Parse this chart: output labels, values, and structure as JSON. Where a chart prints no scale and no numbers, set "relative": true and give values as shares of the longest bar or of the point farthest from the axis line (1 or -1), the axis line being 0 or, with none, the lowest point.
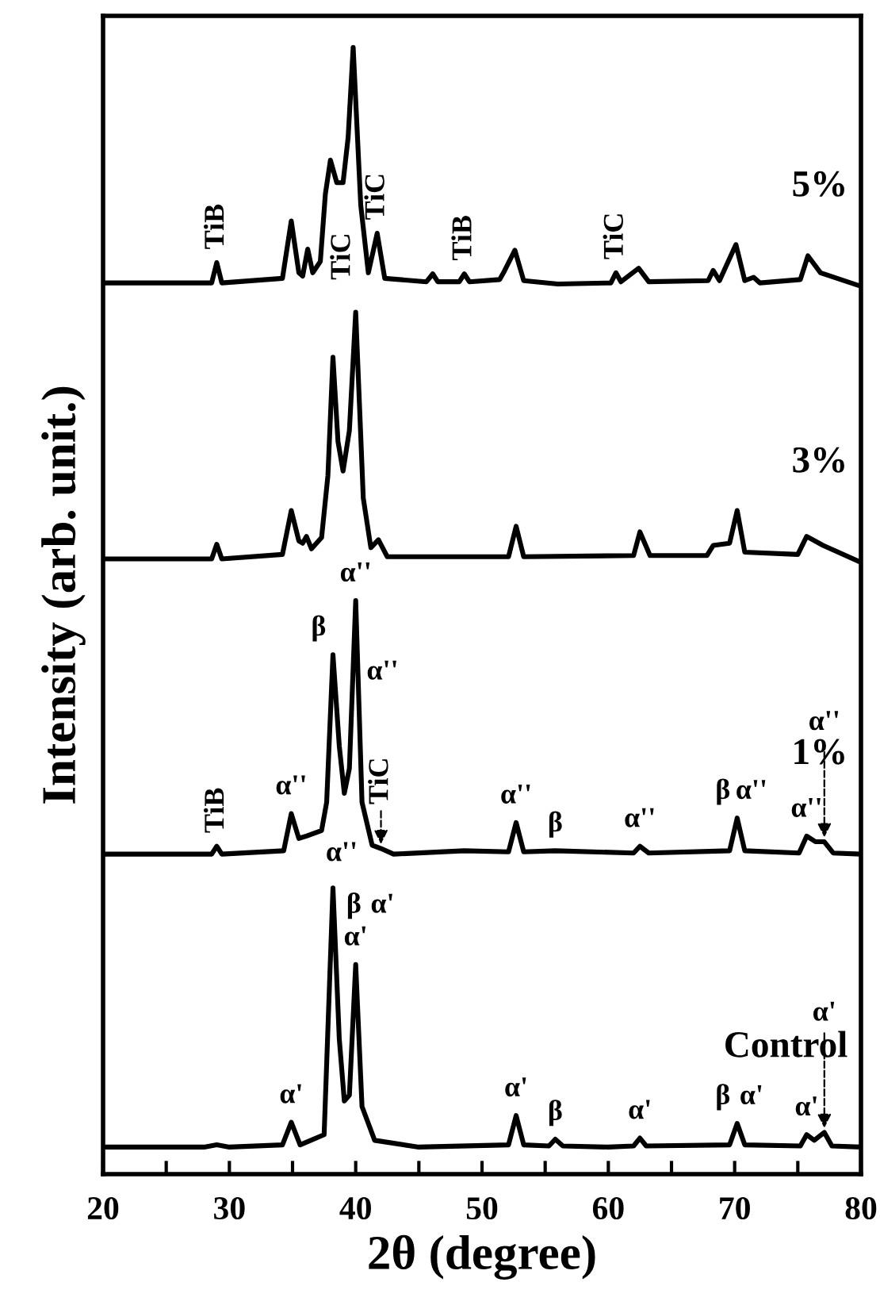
{
  "chart_data": {
    "type": "line",
    "relative": true,
    "xlabel": "2θ (degree)",
    "ylabel": "Intensity (arb. unit.)",
    "xlim": [
      20,
      80
    ],
    "xticks": [
      20,
      {
        "value": 25,
        "label": null
      },
      30,
      {
        "value": 35,
        "label": null
      },
      40,
      {
        "value": 45,
        "label": null
      },
      50,
      {
        "value": 55,
        "label": null
      },
      60,
      {
        "value": 65,
        "label": null
      },
      70,
      {
        "value": 75,
        "label": null
      },
      80
    ],
    "tick_labels": "x",
    "grid": false,
    "legend": false,
    "marker": "none",
    "line_style": "solid",
    "series": [
      {
        "name": "5%",
        "color": "#000000",
        "x": [
          20,
          28.6,
          29.0,
          29.4,
          34.2,
          34.9,
          35.5,
          35.8,
          36.2,
          36.6,
          37.2,
          37.6,
          38.0,
          38.5,
          39.0,
          39.4,
          39.8,
          40.4,
          41.0,
          41.7,
          42.3,
          45.6,
          46.1,
          46.5,
          48.2,
          48.6,
          49.0,
          51.4,
          51.7,
          52.6,
          53.3,
          56,
          60.2,
          60.6,
          61.0,
          62.4,
          63.2,
          67.9,
          68.3,
          68.8,
          70.1,
          70.8,
          71.5,
          72.0,
          75.2,
          75.8,
          76.8,
          80
        ],
        "values": [
          0.791,
          0.791,
          0.809,
          0.791,
          0.795,
          0.846,
          0.8,
          0.797,
          0.821,
          0.8,
          0.81,
          0.87,
          0.9,
          0.88,
          0.88,
          0.92,
          1.0,
          0.86,
          0.8,
          0.835,
          0.795,
          0.792,
          0.799,
          0.792,
          0.792,
          0.799,
          0.792,
          0.794,
          0.8,
          0.82,
          0.793,
          0.79,
          0.791,
          0.8,
          0.792,
          0.804,
          0.792,
          0.793,
          0.802,
          0.793,
          0.825,
          0.793,
          0.796,
          0.791,
          0.794,
          0.815,
          0.8,
          0.788
        ]
      },
      {
        "name": "3%",
        "color": "#000000",
        "x": [
          20,
          28.6,
          29.0,
          29.4,
          34.2,
          34.9,
          35.5,
          35.8,
          36.1,
          36.5,
          37.3,
          37.8,
          38.2,
          38.6,
          39.0,
          39.5,
          40.0,
          40.6,
          41.2,
          41.8,
          42.5,
          48.6,
          52.1,
          52.7,
          53.3,
          62.0,
          62.5,
          63.3,
          67.8,
          68.3,
          69.6,
          70.2,
          70.8,
          75.0,
          75.7,
          77.0,
          80
        ],
        "values": [
          0.546,
          0.546,
          0.559,
          0.546,
          0.55,
          0.589,
          0.562,
          0.56,
          0.566,
          0.555,
          0.565,
          0.62,
          0.725,
          0.65,
          0.624,
          0.66,
          0.765,
          0.6,
          0.556,
          0.563,
          0.548,
          0.548,
          0.548,
          0.575,
          0.548,
          0.549,
          0.57,
          0.549,
          0.549,
          0.558,
          0.56,
          0.589,
          0.552,
          0.55,
          0.566,
          0.558,
          0.543
        ]
      },
      {
        "name": "1%",
        "color": "#000000",
        "x": [
          20,
          28.6,
          29.0,
          29.4,
          34.3,
          34.9,
          35.5,
          36.1,
          37.3,
          37.7,
          38.2,
          38.7,
          39.1,
          39.5,
          40.0,
          40.5,
          41.3,
          42.0,
          43,
          48.6,
          52.1,
          52.7,
          53.3,
          55.8,
          62.0,
          62.5,
          63.2,
          69.6,
          70.2,
          70.8,
          75.1,
          75.7,
          76.4,
          77.1,
          77.8,
          80
        ],
        "values": [
          0.284,
          0.284,
          0.291,
          0.284,
          0.287,
          0.32,
          0.298,
          0.3,
          0.305,
          0.33,
          0.461,
          0.38,
          0.338,
          0.36,
          0.509,
          0.33,
          0.292,
          0.289,
          0.284,
          0.287,
          0.286,
          0.312,
          0.286,
          0.287,
          0.285,
          0.291,
          0.285,
          0.287,
          0.316,
          0.287,
          0.285,
          0.3,
          0.295,
          0.295,
          0.285,
          0.284
        ]
      },
      {
        "name": "Control",
        "color": "#000000",
        "x": [
          20,
          28,
          29,
          30,
          34.2,
          34.9,
          35.6,
          37.5,
          38.2,
          38.7,
          39.1,
          39.5,
          40.0,
          40.5,
          41.5,
          45,
          52.1,
          52.7,
          53.3,
          55.3,
          55.8,
          56.4,
          60,
          62.0,
          62.5,
          63.0,
          69.6,
          70.2,
          70.8,
          75.2,
          75.7,
          76.3,
          77.1,
          77.7,
          80
        ],
        "values": [
          0.024,
          0.024,
          0.026,
          0.024,
          0.026,
          0.046,
          0.026,
          0.035,
          0.254,
          0.12,
          0.065,
          0.07,
          0.186,
          0.06,
          0.03,
          0.024,
          0.026,
          0.052,
          0.026,
          0.025,
          0.031,
          0.025,
          0.024,
          0.025,
          0.032,
          0.025,
          0.026,
          0.045,
          0.026,
          0.025,
          0.035,
          0.03,
          0.037,
          0.025,
          0.024
        ]
      }
    ],
    "annotations": [
      {
        "text": "TiB",
        "x": 29.0,
        "y": 0.809
      },
      {
        "text": "TiC",
        "x": 36.2,
        "y": 0.821
      },
      {
        "text": "TiC",
        "x": 41.7,
        "y": 0.835
      },
      {
        "text": "TiB",
        "x": 48.6,
        "y": 0.799
      },
      {
        "text": "TiC",
        "x": 60.6,
        "y": 0.8
      },
      {
        "text": "TiB",
        "x": 29.0,
        "y": 0.291
      },
      {
        "text": "α''",
        "x": 34.9,
        "y": 0.32
      },
      {
        "text": "α''",
        "x": 36.1,
        "y": 0.3
      },
      {
        "text": "β",
        "x": 38.2,
        "y": 0.461
      },
      {
        "text": "α''",
        "x": 38.2,
        "y": 0.461
      },
      {
        "text": "α''",
        "x": 40.0,
        "y": 0.509
      },
      {
        "text": "TiC",
        "x": 42.0,
        "y": 0.289
      },
      {
        "text": "α''",
        "x": 52.7,
        "y": 0.312
      },
      {
        "text": "β",
        "x": 55.8,
        "y": 0.287
      },
      {
        "text": "α''",
        "x": 62.5,
        "y": 0.291
      },
      {
        "text": "β",
        "x": 70.2,
        "y": 0.316
      },
      {
        "text": "α''",
        "x": 70.2,
        "y": 0.316
      },
      {
        "text": "α''",
        "x": 75.7,
        "y": 0.3
      },
      {
        "text": "α''",
        "x": 77.1,
        "y": 0.295
      },
      {
        "text": "α'",
        "x": 34.9,
        "y": 0.046
      },
      {
        "text": "β",
        "x": 38.2,
        "y": 0.254
      },
      {
        "text": "α'",
        "x": 38.2,
        "y": 0.254
      },
      {
        "text": "α'",
        "x": 40.0,
        "y": 0.186
      },
      {
        "text": "α'",
        "x": 52.7,
        "y": 0.052
      },
      {
        "text": "β",
        "x": 55.8,
        "y": 0.031
      },
      {
        "text": "α'",
        "x": 62.5,
        "y": 0.032
      },
      {
        "text": "β",
        "x": 70.2,
        "y": 0.045
      },
      {
        "text": "α'",
        "x": 70.2,
        "y": 0.045
      },
      {
        "text": "α'",
        "x": 75.7,
        "y": 0.035
      },
      {
        "text": "α'",
        "x": 77.1,
        "y": 0.037
      }
    ]
  }
}
